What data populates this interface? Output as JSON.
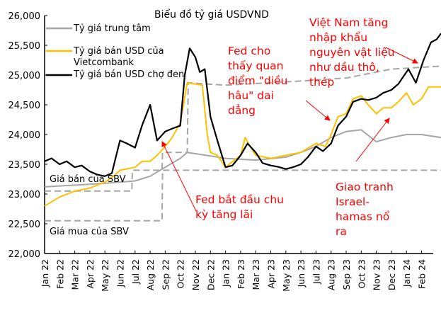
{
  "chart_data": {
    "type": "line",
    "title": "Biểu đồ tỷ giá USDVND",
    "ylim": [
      22000,
      26000
    ],
    "yticks": [
      "22,000",
      "22,500",
      "23,000",
      "23,500",
      "24,000",
      "24,500",
      "25,000",
      "25,500",
      "26,000"
    ],
    "ytick_values": [
      22000,
      22500,
      23000,
      23500,
      24000,
      24500,
      25000,
      25500,
      26000
    ],
    "xticks": [
      "Jan 22",
      "Feb 22",
      "Mar 22",
      "Apr 22",
      "May 22",
      "Jun 22",
      "Jul 22",
      "Aug 22",
      "Sep 22",
      "Oct 22",
      "Nov 22",
      "Dec 22",
      "Jan 23",
      "Feb 23",
      "Mar 23",
      "Apr 23",
      "May 23",
      "Jun 23",
      "Jul 23",
      "Aug 23",
      "Sep 23",
      "Oct 23",
      "Nov 23",
      "Dec 23",
      "Jan 24",
      "Feb 24"
    ],
    "grid": false,
    "legend": "top-left",
    "series": [
      {
        "name": "Tỷ giá trung tâm",
        "color": "#a6a6a6",
        "style": "solid",
        "points": [
          [
            "2022-01-01",
            23120
          ],
          [
            "2022-03-01",
            23150
          ],
          [
            "2022-05-01",
            23180
          ],
          [
            "2022-07-01",
            23220
          ],
          [
            "2022-08-01",
            23300
          ],
          [
            "2022-09-01",
            23450
          ],
          [
            "2022-10-01",
            23600
          ],
          [
            "2022-10-15",
            23700
          ],
          [
            "2022-12-01",
            23640
          ],
          [
            "2023-01-01",
            23600
          ],
          [
            "2023-03-01",
            23570
          ],
          [
            "2023-05-01",
            23620
          ],
          [
            "2023-06-01",
            23700
          ],
          [
            "2023-07-01",
            23800
          ],
          [
            "2023-08-01",
            23950
          ],
          [
            "2023-09-01",
            24050
          ],
          [
            "2023-10-01",
            24080
          ],
          [
            "2023-11-01",
            23880
          ],
          [
            "2023-12-01",
            23950
          ],
          [
            "2024-01-01",
            24000
          ],
          [
            "2024-02-01",
            24000
          ],
          [
            "2024-03-10",
            23950
          ]
        ]
      },
      {
        "name": "Tỷ giá bán USD của Vietcombank",
        "color": "#ffc000",
        "style": "solid",
        "points": [
          [
            "2022-01-01",
            22800
          ],
          [
            "2022-02-01",
            22950
          ],
          [
            "2022-03-01",
            23050
          ],
          [
            "2022-04-01",
            23100
          ],
          [
            "2022-05-01",
            23200
          ],
          [
            "2022-05-20",
            23310
          ],
          [
            "2022-06-01",
            23400
          ],
          [
            "2022-07-01",
            23450
          ],
          [
            "2022-07-15",
            23550
          ],
          [
            "2022-08-01",
            23550
          ],
          [
            "2022-08-15",
            23650
          ],
          [
            "2022-09-01",
            23800
          ],
          [
            "2022-09-15",
            23950
          ],
          [
            "2022-10-01",
            24200
          ],
          [
            "2022-10-15",
            24870
          ],
          [
            "2022-11-01",
            24850
          ],
          [
            "2022-11-15",
            24830
          ],
          [
            "2022-11-25",
            24000
          ],
          [
            "2022-12-01",
            23700
          ],
          [
            "2022-12-15",
            23650
          ],
          [
            "2023-01-01",
            23450
          ],
          [
            "2023-02-01",
            23650
          ],
          [
            "2023-02-10",
            23950
          ],
          [
            "2023-03-01",
            23650
          ],
          [
            "2023-04-01",
            23600
          ],
          [
            "2023-05-01",
            23650
          ],
          [
            "2023-06-01",
            23700
          ],
          [
            "2023-07-01",
            23850
          ],
          [
            "2023-07-20",
            23800
          ],
          [
            "2023-08-01",
            24000
          ],
          [
            "2023-08-15",
            24300
          ],
          [
            "2023-09-01",
            24350
          ],
          [
            "2023-09-15",
            24600
          ],
          [
            "2023-10-01",
            24650
          ],
          [
            "2023-10-15",
            24500
          ],
          [
            "2023-11-01",
            24350
          ],
          [
            "2023-11-15",
            24450
          ],
          [
            "2023-12-01",
            24450
          ],
          [
            "2023-12-15",
            24550
          ],
          [
            "2024-01-01",
            24700
          ],
          [
            "2024-01-15",
            24500
          ],
          [
            "2024-02-01",
            24600
          ],
          [
            "2024-02-15",
            24800
          ],
          [
            "2024-03-10",
            24800
          ]
        ]
      },
      {
        "name": "Tỷ giá bán USD chợ đen",
        "color": "#000000",
        "style": "solid",
        "points": [
          [
            "2022-01-01",
            23550
          ],
          [
            "2022-01-15",
            23600
          ],
          [
            "2022-02-01",
            23500
          ],
          [
            "2022-02-15",
            23550
          ],
          [
            "2022-03-01",
            23450
          ],
          [
            "2022-03-15",
            23480
          ],
          [
            "2022-04-01",
            23380
          ],
          [
            "2022-04-15",
            23330
          ],
          [
            "2022-05-01",
            23300
          ],
          [
            "2022-05-15",
            23350
          ],
          [
            "2022-06-01",
            23900
          ],
          [
            "2022-06-15",
            23850
          ],
          [
            "2022-07-01",
            23780
          ],
          [
            "2022-07-15",
            24150
          ],
          [
            "2022-08-01",
            24500
          ],
          [
            "2022-08-15",
            23900
          ],
          [
            "2022-09-01",
            24050
          ],
          [
            "2022-09-15",
            24100
          ],
          [
            "2022-10-01",
            24150
          ],
          [
            "2022-10-10",
            25000
          ],
          [
            "2022-10-20",
            25450
          ],
          [
            "2022-11-01",
            25300
          ],
          [
            "2022-11-10",
            25050
          ],
          [
            "2022-11-20",
            25100
          ],
          [
            "2022-12-01",
            24300
          ],
          [
            "2022-12-15",
            23900
          ],
          [
            "2023-01-01",
            23450
          ],
          [
            "2023-01-15",
            23480
          ],
          [
            "2023-02-01",
            23650
          ],
          [
            "2023-02-15",
            23850
          ],
          [
            "2023-03-01",
            23700
          ],
          [
            "2023-03-15",
            23520
          ],
          [
            "2023-04-01",
            23480
          ],
          [
            "2023-04-15",
            23460
          ],
          [
            "2023-05-01",
            23420
          ],
          [
            "2023-05-15",
            23450
          ],
          [
            "2023-06-01",
            23500
          ],
          [
            "2023-06-15",
            23620
          ],
          [
            "2023-07-01",
            23800
          ],
          [
            "2023-07-15",
            23720
          ],
          [
            "2023-08-01",
            23850
          ],
          [
            "2023-08-15",
            24150
          ],
          [
            "2023-09-01",
            24300
          ],
          [
            "2023-09-15",
            24550
          ],
          [
            "2023-10-01",
            24600
          ],
          [
            "2023-10-15",
            24580
          ],
          [
            "2023-11-01",
            24620
          ],
          [
            "2023-11-15",
            24700
          ],
          [
            "2023-12-01",
            24750
          ],
          [
            "2023-12-15",
            24850
          ],
          [
            "2024-01-05",
            25100
          ],
          [
            "2024-01-20",
            24870
          ],
          [
            "2024-02-05",
            25250
          ],
          [
            "2024-02-20",
            25550
          ],
          [
            "2024-03-01",
            25600
          ],
          [
            "2024-03-10",
            25700
          ]
        ]
      },
      {
        "name": "Giá bán của SBV",
        "color": "#a6a6a6",
        "style": "dashed",
        "points": [
          [
            "2022-01-01",
            23050
          ],
          [
            "2022-06-25",
            23050
          ],
          [
            "2022-06-26",
            23400
          ],
          [
            "2022-08-25",
            23400
          ],
          [
            "2022-08-26",
            23700
          ],
          [
            "2022-10-15",
            23700
          ],
          [
            "2022-10-17",
            24870
          ],
          [
            "2023-01-01",
            24830
          ],
          [
            "2023-06-01",
            24900
          ],
          [
            "2023-09-01",
            24950
          ],
          [
            "2023-12-01",
            25100
          ],
          [
            "2024-03-10",
            25150
          ]
        ]
      },
      {
        "name": "Giá mua của SBV",
        "color": "#a6a6a6",
        "style": "dashed",
        "points": [
          [
            "2022-01-01",
            22550
          ],
          [
            "2022-08-25",
            22550
          ],
          [
            "2022-08-26",
            23400
          ],
          [
            "2024-03-10",
            23400
          ]
        ]
      }
    ],
    "legend_entries": [
      "Tỷ giá trung tâm",
      "Tỷ giá bán USD của\nVietcombank",
      "Tỷ giá bán USD chợ đen"
    ],
    "labels": {
      "sbv_sell": "Giá bán của SBV",
      "sbv_buy": "Giá mua của SBV"
    },
    "annotations": [
      {
        "text": "Fed bắt đầu chu\nkỳ tăng lãi",
        "color": "#ff0000"
      },
      {
        "text": "Fed cho\nthấy quan\nđiểm \"diều\nhâu\" dai\ndẳng",
        "color": "#ff0000"
      },
      {
        "text": "Việt Nam tăng\nnhập khẩu\nnguyên vật liệu\nnhư dầu thô,\nthép",
        "color": "#ff0000"
      },
      {
        "text": "Giao tranh\nIsrael-\nhamas nổ\nra",
        "color": "#ff0000"
      }
    ]
  }
}
